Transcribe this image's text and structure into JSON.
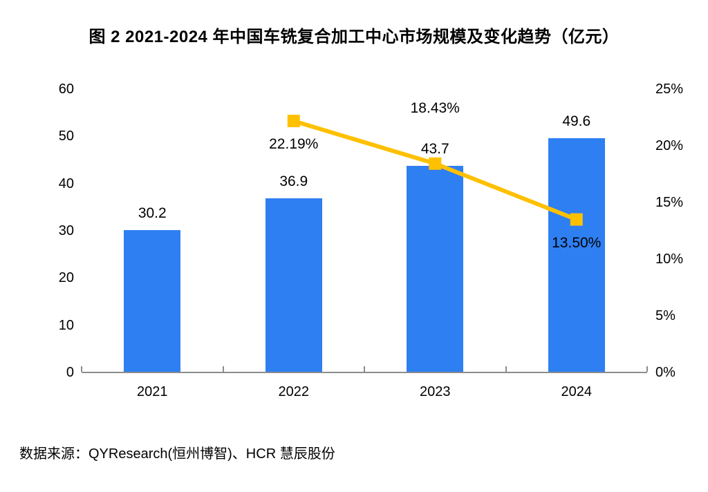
{
  "page": {
    "source": "数据来源：QYResearch(恒州博智)、HCR 慧辰股份"
  },
  "colors": {
    "bar": "#2E7FF2",
    "line": "#FFC000",
    "axis": "#8C8C8C",
    "text": "#000000",
    "background": "#FFFFFF"
  },
  "chart_data": {
    "type": "bar",
    "subtype": "combo-bar-line",
    "title": "图 2 2021-2024 年中国车铣复合加工中心市场规模及变化趋势（亿元）",
    "categories": [
      "2021",
      "2022",
      "2023",
      "2024"
    ],
    "series": [
      {
        "id": "bar-series",
        "type": "bar",
        "axis": "left",
        "color": "#2E7FF2",
        "values": [
          30.2,
          36.9,
          43.7,
          49.6
        ],
        "labels": [
          "30.2",
          "36.9",
          "43.7",
          "49.6"
        ]
      },
      {
        "id": "line-series",
        "type": "line",
        "axis": "right",
        "color": "#FFC000",
        "marker": "square",
        "values": [
          null,
          22.19,
          18.43,
          13.5
        ],
        "labels": [
          null,
          "22.19%",
          "18.43%",
          "13.50%"
        ],
        "label_placements": [
          null,
          "below",
          "above",
          "below"
        ]
      }
    ],
    "left_axis": {
      "min": 0,
      "max": 60,
      "step": 10,
      "tick_labels": [
        "0",
        "10",
        "20",
        "30",
        "40",
        "50",
        "60"
      ]
    },
    "right_axis": {
      "min": 0,
      "max": 25,
      "step": 5,
      "tick_labels": [
        "0%",
        "5%",
        "10%",
        "15%",
        "20%",
        "25%"
      ]
    },
    "grid": false,
    "legend": "none"
  }
}
